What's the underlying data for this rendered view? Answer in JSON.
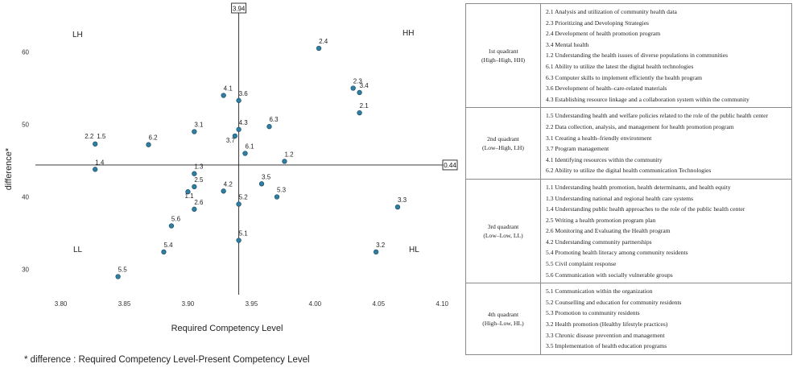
{
  "chart_data": {
    "type": "scatter",
    "xlabel": "Required Competency Level",
    "ylabel": "difference*",
    "xlim": [
      3.78,
      4.11
    ],
    "ylim": [
      26.5,
      66.5
    ],
    "x_ticks": [
      "3.80",
      "3.85",
      "3.90",
      "3.95",
      "4.00",
      "4.05",
      "4.10"
    ],
    "x_tick_values": [
      3.8,
      3.85,
      3.9,
      3.95,
      4.0,
      4.05,
      4.1
    ],
    "y_ticks": [
      "30",
      "40",
      "50",
      "60"
    ],
    "y_tick_values": [
      30,
      40,
      50,
      60
    ],
    "grid": false,
    "reference_lines": {
      "x": {
        "value": 3.94,
        "label": "3.94"
      },
      "y": {
        "value": 44.4,
        "label": "0.44"
      }
    },
    "quadrant_labels": {
      "top_left": "LH",
      "top_right": "HH",
      "bottom_left": "LL",
      "bottom_right": "HL"
    },
    "point_color": "#2f7fa3",
    "points": [
      {
        "label": "2.4",
        "x": 4.003,
        "y": 60.5
      },
      {
        "label": "2.3",
        "x": 4.03,
        "y": 55.0
      },
      {
        "label": "3.4",
        "x": 4.035,
        "y": 54.4
      },
      {
        "label": "2.1",
        "x": 4.035,
        "y": 51.6
      },
      {
        "label": "4.1",
        "x": 3.928,
        "y": 54.0
      },
      {
        "label": "3.6",
        "x": 3.94,
        "y": 53.3
      },
      {
        "label": "3.1",
        "x": 3.905,
        "y": 49.0
      },
      {
        "label": "4.3",
        "x": 3.94,
        "y": 49.3
      },
      {
        "label": "6.3",
        "x": 3.964,
        "y": 49.7
      },
      {
        "label": "3.7",
        "x": 3.937,
        "y": 48.4
      },
      {
        "label": "2.2",
        "x": 3.827,
        "y": 47.3
      },
      {
        "label": "1.5",
        "x": 3.827,
        "y": 47.3
      },
      {
        "label": "6.2",
        "x": 3.869,
        "y": 47.2
      },
      {
        "label": "6.1",
        "x": 3.945,
        "y": 46.0
      },
      {
        "label": "1.2",
        "x": 3.976,
        "y": 44.9
      },
      {
        "label": "1.4",
        "x": 3.827,
        "y": 43.8
      },
      {
        "label": "1.3",
        "x": 3.905,
        "y": 43.2
      },
      {
        "label": "2.5",
        "x": 3.905,
        "y": 41.4
      },
      {
        "label": "1.1",
        "x": 3.9,
        "y": 40.7
      },
      {
        "label": "4.2",
        "x": 3.928,
        "y": 40.8
      },
      {
        "label": "3.5",
        "x": 3.958,
        "y": 41.8
      },
      {
        "label": "5.3",
        "x": 3.97,
        "y": 40.0
      },
      {
        "label": "2.6",
        "x": 3.905,
        "y": 38.3
      },
      {
        "label": "5.2",
        "x": 3.94,
        "y": 39.0
      },
      {
        "label": "3.3",
        "x": 4.065,
        "y": 38.6
      },
      {
        "label": "5.6",
        "x": 3.887,
        "y": 36.0
      },
      {
        "label": "5.1",
        "x": 3.94,
        "y": 34.0
      },
      {
        "label": "5.4",
        "x": 3.881,
        "y": 32.4
      },
      {
        "label": "3.2",
        "x": 4.048,
        "y": 32.4
      },
      {
        "label": "5.5",
        "x": 3.845,
        "y": 29.0
      }
    ]
  },
  "footnote": "* difference : Required Competency Level-Present Competency Level",
  "table": {
    "quadrants": [
      {
        "name_line1": "1st quadrant",
        "name_line2": "(High–High, HH)",
        "items": [
          "2.1  Analysis and utilization of community health data",
          "2.3  Prioritizing and Developing Strategies",
          "2.4  Development of health promotion program",
          "3.4  Mental health",
          "1.2  Understanding the health issues of diverse populations in communities",
          "6.1  Ability to utilize the latest the digital health technologies",
          "6.3  Computer skills to implement efficiently the health program",
          "3.6  Development of health–care-related materials",
          "4.3  Establishing resource linkage and a collaboration system within the community"
        ]
      },
      {
        "name_line1": "2nd quadrant",
        "name_line2": "(Low–High, LH)",
        "items": [
          "1.5  Understanding health and welfare policies related to the role of the public health center",
          "2.2  Data collection, analysis, and management for health promotion program",
          "3.1  Creating a health–friendly environment",
          "3.7  Program management",
          "4.1  Identifying resources within the community",
          "6.2  Ability to utilize the digital health communication Technologies"
        ]
      },
      {
        "name_line1": "3rd quadrant",
        "name_line2": "(Low–Low, LL)",
        "items": [
          "1.1  Understanding health promotion, health determinants, and health equity",
          "1.3  Understanding national and regional health care systems",
          "1.4  Understanding public health approaches to the role of the public health center",
          "2.5  Writing a health promotion program plan",
          "2.6  Monitoring and Evaluating the Health program",
          "4.2  Understanding community partnerships",
          "5.4  Promoting health literacy among community residents",
          "5.5  Civil complaint response",
          "5.6  Communication with socially vulnerable groups"
        ]
      },
      {
        "name_line1": "4th quadrant",
        "name_line2": "(High–Low, HL)",
        "items": [
          "5.1  Communication within the organization",
          "5.2  Counselling and education for community residents",
          "5.3  Promotion to community residents",
          "3.2  Health promotion (Healthy lifestyle practices)",
          "3.3  Chronic disease prevention and management",
          "3.5  Implementation of health education programs"
        ]
      }
    ]
  }
}
